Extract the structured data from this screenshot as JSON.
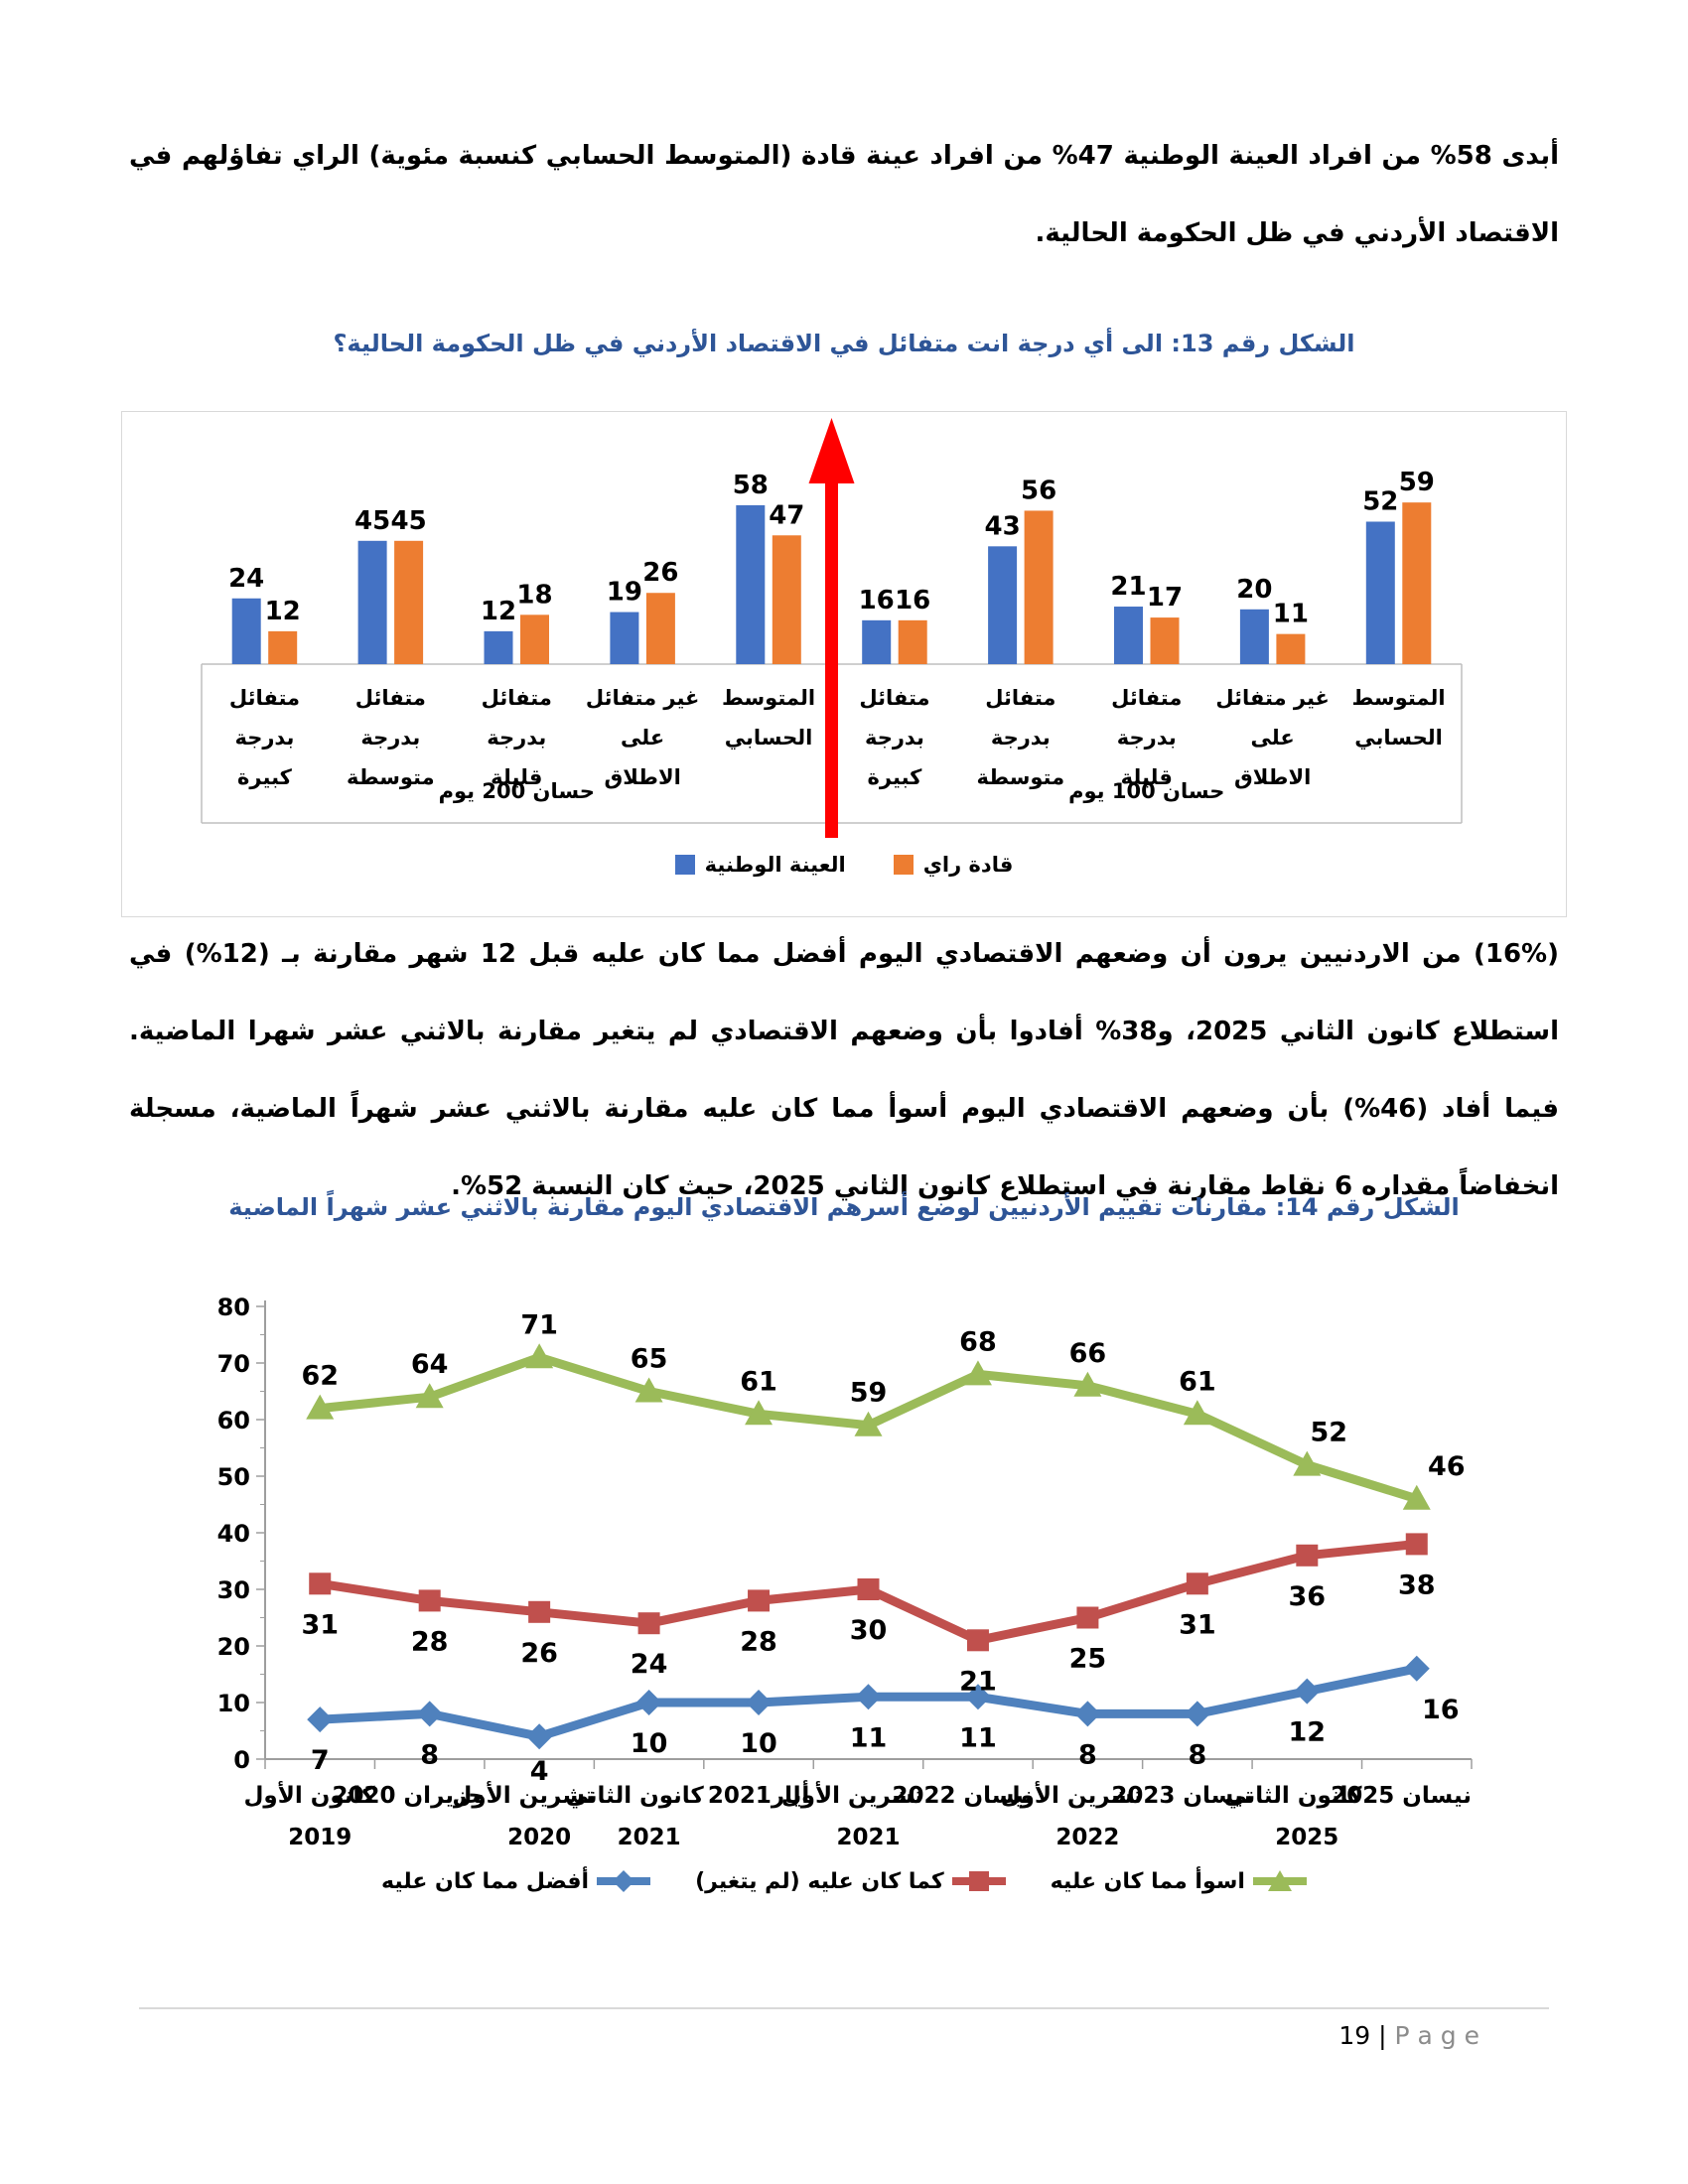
{
  "paragraph_1": "أبدى 58% من افراد العينة الوطنية 47% من افراد عينة قادة (المتوسط الحسابي كنسبة مئوية) الراي تفاؤلهم في الاقتصاد الأردني في ظل الحكومة الحالية.",
  "figure13_title": "الشكل رقم  13: الى أي درجة انت متفائل في الاقتصاد الأردني في ظل الحكومة الحالية؟",
  "paragraph_2": "(16%) من الاردنيين يرون أن وضعهم الاقتصادي اليوم أفضل مما كان عليه قبل 12 شهر مقارنة بـ (12%) في استطلاع كانون الثاني 2025، و38% أفادوا بأن وضعهم الاقتصادي لم يتغير مقارنة بالاثني عشر شهرا الماضية. فيما أفاد (46%) بأن وضعهم الاقتصادي اليوم أسوأ مما كان عليه مقارنة بالاثني عشر شهراً الماضية، مسجلة انخفاضاً مقداره 6 نقاط مقارنة في استطلاع كانون الثاني 2025، حيث كان النسبة 52%.",
  "figure14_title": "الشكل رقم  14: مقارنات تقييم الأردنيين لوضع أسرهم الاقتصادي اليوم مقارنة بالاثني عشر شهراً الماضية",
  "footer": {
    "page_number": "19",
    "separator": "|",
    "page_word": "P a g e"
  },
  "chart_data": [
    {
      "type": "bar",
      "title": "الشكل رقم  13: الى أي درجة انت متفائل في الاقتصاد الأردني في ظل الحكومة الحالية؟",
      "group_labels": [
        "حسان 200 يوم",
        "حسان 100 يوم"
      ],
      "categories_per_group": [
        [
          "متفائل بدرجة",
          "كبيرة"
        ],
        [
          "متفائل بدرجة",
          "متوسطة"
        ],
        [
          "متفائل بدرجة",
          "قليلة"
        ],
        [
          "غير متفائل",
          "على الاطلاق"
        ],
        [
          "المتوسط",
          "الحسابي"
        ]
      ],
      "series": [
        {
          "name": "العينة الوطنية",
          "color": "#4472C4",
          "values": [
            24,
            45,
            12,
            19,
            58,
            16,
            43,
            21,
            20,
            52
          ]
        },
        {
          "name": "قادة راي",
          "color": "#ED7D31",
          "values": [
            12,
            45,
            18,
            26,
            47,
            16,
            56,
            17,
            11,
            59
          ]
        }
      ],
      "annotation": {
        "shape": "up-arrow",
        "color": "#FF0000",
        "position": "between-groups"
      },
      "ylim": [
        0,
        65
      ],
      "data_labels": true,
      "legend_position": "bottom",
      "gridlines": false
    },
    {
      "type": "line",
      "title": "الشكل رقم  14: مقارنات تقييم الأردنيين لوضع أسرهم الاقتصادي اليوم مقارنة بالاثني عشر شهراً الماضية",
      "x_categories": [
        [
          "كانون الأول",
          "2019"
        ],
        [
          "حزيران 2020",
          ""
        ],
        [
          "تشرين الأول",
          "2020"
        ],
        [
          "كانون الثاني",
          "2021"
        ],
        [
          "أيار2021",
          ""
        ],
        [
          "تشرين الأول",
          "2021"
        ],
        [
          "نيسان 2022",
          ""
        ],
        [
          "تشرين الأول",
          "2022"
        ],
        [
          "نيسان 2023",
          ""
        ],
        [
          "كانون الثاني",
          "2025"
        ],
        [
          "نيسان 2025",
          ""
        ]
      ],
      "ylim": [
        0,
        80
      ],
      "ytick_step": 10,
      "yticks": [
        0,
        10,
        20,
        30,
        40,
        50,
        60,
        70,
        80
      ],
      "series": [
        {
          "name": "أفضل مما كان عليه",
          "color": "#4F81BD",
          "marker": "diamond",
          "label_side": "below",
          "values": [
            7,
            8,
            4,
            10,
            10,
            11,
            11,
            8,
            8,
            12,
            16
          ]
        },
        {
          "name": "كما كان عليه (لم يتغير)",
          "color": "#C0504D",
          "marker": "square",
          "label_side": "below",
          "values": [
            31,
            28,
            26,
            24,
            28,
            30,
            21,
            25,
            31,
            36,
            38
          ]
        },
        {
          "name": "اسوأ مما كان عليه",
          "color": "#9BBB59",
          "marker": "triangle",
          "label_side": "above",
          "values": [
            62,
            64,
            71,
            65,
            61,
            59,
            68,
            66,
            61,
            52,
            46
          ]
        }
      ],
      "legend_position": "bottom",
      "gridlines": false,
      "axis_color": "#9E9E9E"
    }
  ]
}
